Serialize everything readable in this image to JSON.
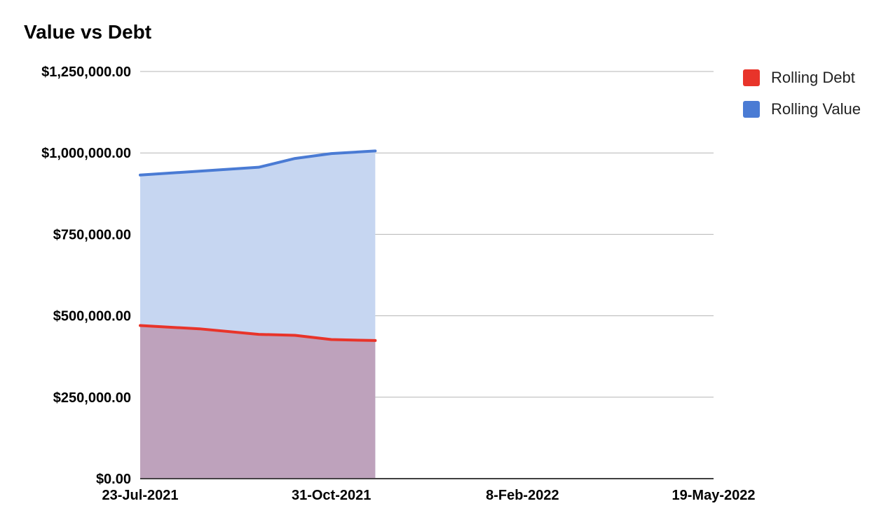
{
  "chart_data": {
    "type": "area",
    "title": "Value vs Debt",
    "xlabel": "",
    "ylabel": "",
    "x_ticks": [
      "23-Jul-2021",
      "31-Oct-2021",
      "8-Feb-2022",
      "19-May-2022"
    ],
    "x_tick_dates": [
      "2021-07-23",
      "2021-10-31",
      "2022-02-08",
      "2022-05-19"
    ],
    "xlim": [
      "2021-07-23",
      "2022-05-19"
    ],
    "y_ticks": [
      "$0.00",
      "$250,000.00",
      "$500,000.00",
      "$750,000.00",
      "$1,000,000.00",
      "$1,250,000.00"
    ],
    "ylim": [
      0,
      1250000
    ],
    "grid": true,
    "legend_position": "right",
    "x": [
      "2021-07-23",
      "2021-08-23",
      "2021-09-23",
      "2021-10-12",
      "2021-10-31",
      "2021-11-23"
    ],
    "series": [
      {
        "name": "Rolling Debt",
        "color": "#e8342a",
        "fill": "#bea2bc",
        "values": [
          470000,
          460000,
          443000,
          440000,
          427000,
          424000
        ]
      },
      {
        "name": "Rolling Value",
        "color": "#4a7bd4",
        "fill": "#c6d6f1",
        "values": [
          932000,
          944000,
          956000,
          983000,
          998000,
          1006000
        ]
      }
    ]
  }
}
